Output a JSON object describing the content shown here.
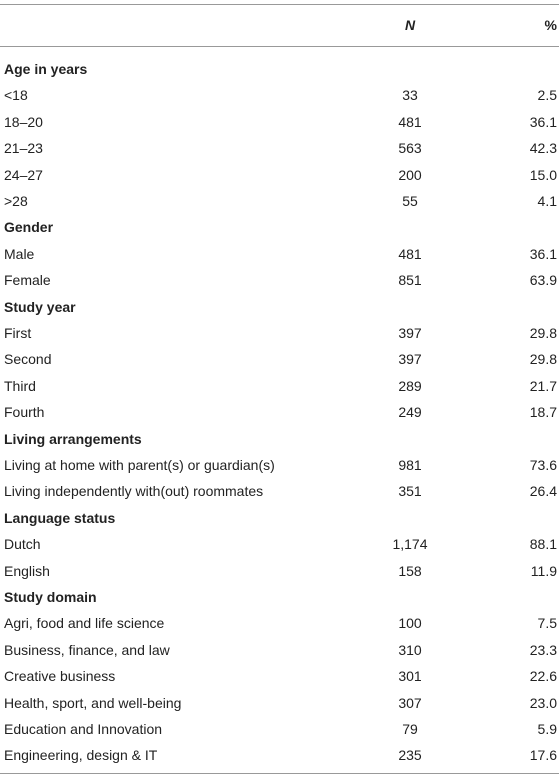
{
  "header": {
    "n": "N",
    "pct": "%"
  },
  "sections": [
    {
      "title": "Age in years",
      "rows": [
        [
          "<18",
          "33",
          "2.5"
        ],
        [
          "18–20",
          "481",
          "36.1"
        ],
        [
          "21–23",
          "563",
          "42.3"
        ],
        [
          "24–27",
          "200",
          "15.0"
        ],
        [
          ">28",
          "55",
          "4.1"
        ]
      ]
    },
    {
      "title": "Gender",
      "rows": [
        [
          "Male",
          "481",
          "36.1"
        ],
        [
          "Female",
          "851",
          "63.9"
        ]
      ]
    },
    {
      "title": "Study year",
      "rows": [
        [
          "First",
          "397",
          "29.8"
        ],
        [
          "Second",
          "397",
          "29.8"
        ],
        [
          "Third",
          "289",
          "21.7"
        ],
        [
          "Fourth",
          "249",
          "18.7"
        ]
      ]
    },
    {
      "title": "Living arrangements",
      "rows": [
        [
          "Living at home with parent(s) or guardian(s)",
          "981",
          "73.6"
        ],
        [
          "Living independently with(out) roommates",
          "351",
          "26.4"
        ]
      ]
    },
    {
      "title": "Language status",
      "rows": [
        [
          "Dutch",
          "1,174",
          "88.1"
        ],
        [
          "English",
          "158",
          "11.9"
        ]
      ]
    },
    {
      "title": "Study domain",
      "rows": [
        [
          "Agri, food and life science",
          "100",
          "7.5"
        ],
        [
          "Business, finance, and law",
          "310",
          "23.3"
        ],
        [
          "Creative business",
          "301",
          "22.6"
        ],
        [
          "Health, sport, and well-being",
          "307",
          "23.0"
        ],
        [
          "Education and Innovation",
          "79",
          "5.9"
        ],
        [
          "Engineering, design & IT",
          "235",
          "17.6"
        ]
      ]
    }
  ]
}
